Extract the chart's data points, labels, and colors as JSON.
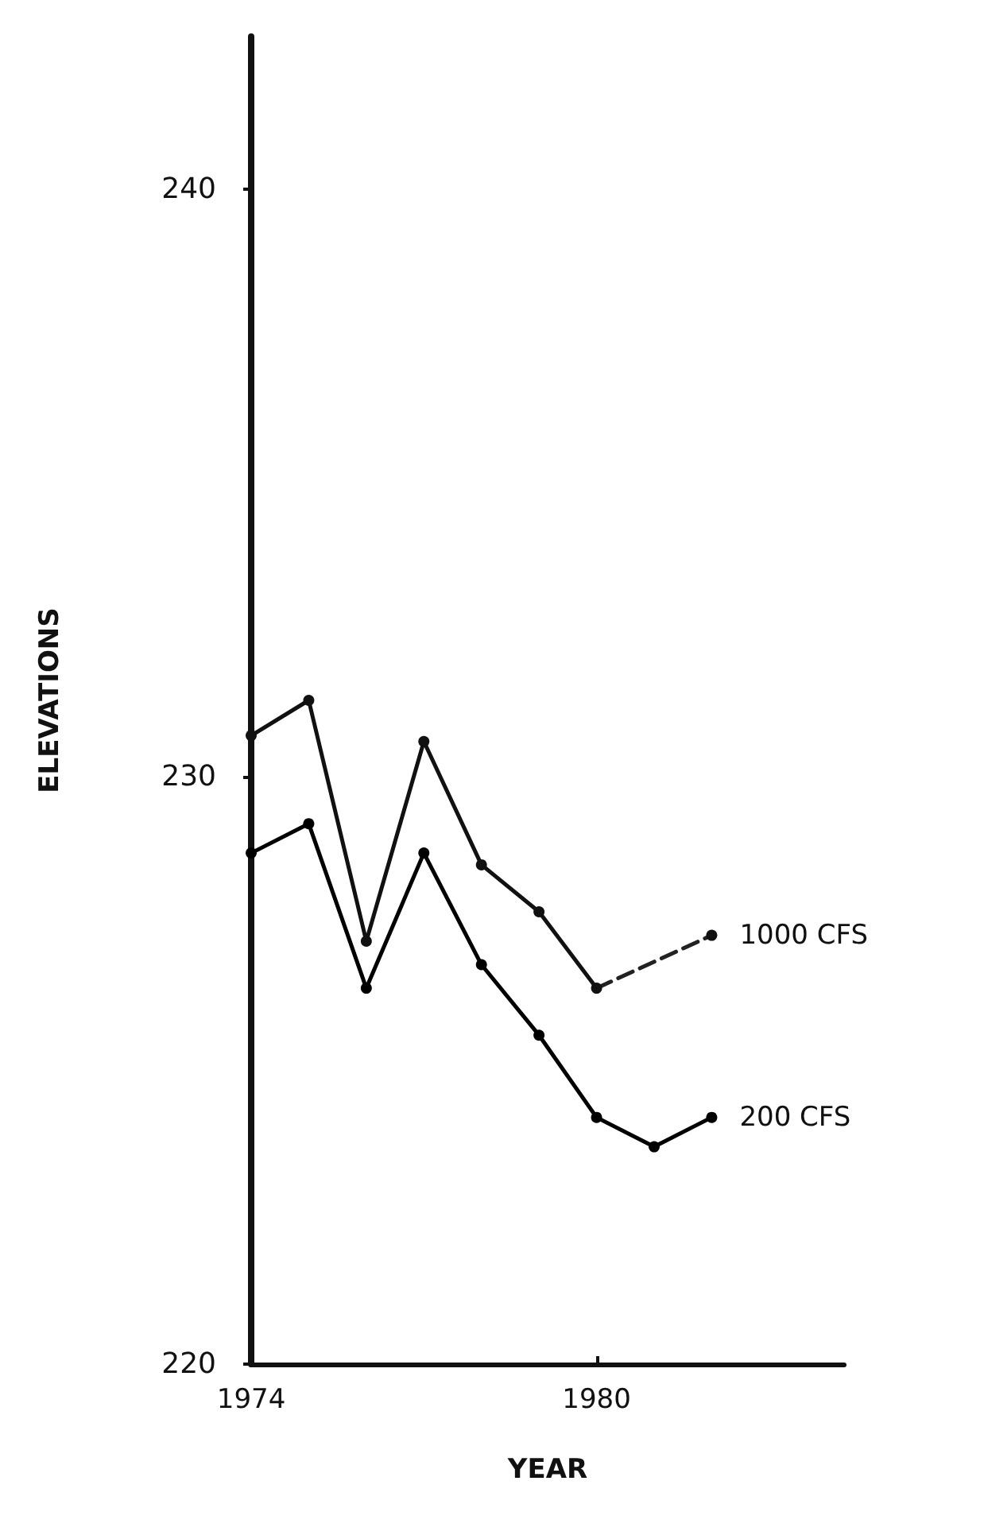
{
  "chart_data": {
    "type": "line",
    "xlabel": "YEAR",
    "ylabel": "ELEVATIONS",
    "xlim": [
      1974,
      1984.3
    ],
    "xticks": [
      1974,
      1980
    ],
    "ylim": [
      220,
      242.6
    ],
    "yticks": [
      220,
      230,
      240
    ],
    "grid": false,
    "legend": false,
    "marker": "circle",
    "line_style": "solid",
    "series": [
      {
        "name": "1000 CFS",
        "color": "#111111",
        "x": [
          1974,
          1975,
          1976,
          1977,
          1978,
          1979,
          1980,
          1981,
          1982
        ],
        "values": [
          230.7,
          231.3,
          227.2,
          230.6,
          228.5,
          227.7,
          226.4,
          null,
          227.3
        ]
      },
      {
        "color": "#222222",
        "line_style": "dashed",
        "marker": "none",
        "x": [
          1980,
          1982
        ],
        "values": [
          226.4,
          227.3
        ]
      },
      {
        "name": "200 CFS",
        "color": "#000000",
        "x": [
          1974,
          1975,
          1976,
          1977,
          1978,
          1979,
          1980,
          1981,
          1982
        ],
        "values": [
          228.7,
          229.2,
          226.4,
          228.7,
          226.8,
          225.6,
          224.2,
          223.7,
          224.2
        ]
      }
    ]
  }
}
